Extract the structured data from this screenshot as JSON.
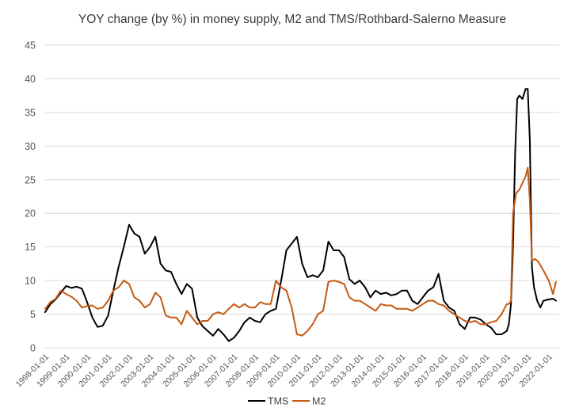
{
  "chart_data": {
    "type": "line",
    "title": "YOY change (by %) in money supply, M2 and TMS/Rothbard-Salerno Measure",
    "xlabel": "",
    "ylabel": "",
    "ylim": [
      0,
      45
    ],
    "yticks": [
      "0",
      "5",
      "10",
      "15",
      "20",
      "25",
      "30",
      "35",
      "40",
      "45"
    ],
    "xlim": [
      1998.0,
      2022.5
    ],
    "xticks": [
      "1998-01-01",
      "1999-01-01",
      "2000-01-01",
      "2001-01-01",
      "2002-01-01",
      "2003-01-01",
      "2004-01-01",
      "2005-01-01",
      "2006-01-01",
      "2007-01-01",
      "2008-01-01",
      "2009-01-01",
      "2010-01-01",
      "2011-01-01",
      "2012-01-01",
      "2013-01-01",
      "2014-01-01",
      "2015-01-01",
      "2016-01-01",
      "2017-01-01",
      "2018-01-01",
      "2019-01-01",
      "2020-01-01",
      "2021-01-01",
      "2022-01-01"
    ],
    "grid": true,
    "legend_position": "bottom",
    "series": [
      {
        "name": "TMS",
        "color": "#000000",
        "x": [
          1998.0,
          1998.25,
          1998.5,
          1998.75,
          1999.0,
          1999.25,
          1999.5,
          1999.75,
          2000.0,
          2000.25,
          2000.5,
          2000.75,
          2001.0,
          2001.25,
          2001.5,
          2001.75,
          2002.0,
          2002.25,
          2002.5,
          2002.75,
          2003.0,
          2003.25,
          2003.5,
          2003.75,
          2004.0,
          2004.25,
          2004.5,
          2004.75,
          2005.0,
          2005.25,
          2005.5,
          2005.75,
          2006.0,
          2006.25,
          2006.5,
          2006.75,
          2007.0,
          2007.25,
          2007.5,
          2007.75,
          2008.0,
          2008.25,
          2008.5,
          2008.75,
          2009.0,
          2009.25,
          2009.5,
          2009.75,
          2010.0,
          2010.25,
          2010.5,
          2010.75,
          2011.0,
          2011.25,
          2011.5,
          2011.75,
          2012.0,
          2012.25,
          2012.5,
          2012.75,
          2013.0,
          2013.25,
          2013.5,
          2013.75,
          2014.0,
          2014.25,
          2014.5,
          2014.75,
          2015.0,
          2015.25,
          2015.5,
          2015.75,
          2016.0,
          2016.25,
          2016.5,
          2016.75,
          2017.0,
          2017.25,
          2017.5,
          2017.75,
          2018.0,
          2018.25,
          2018.5,
          2018.75,
          2019.0,
          2019.25,
          2019.5,
          2019.75,
          2020.0,
          2020.1,
          2020.2,
          2020.3,
          2020.4,
          2020.5,
          2020.6,
          2020.75,
          2020.9,
          2021.0,
          2021.1,
          2021.2,
          2021.3,
          2021.45,
          2021.6,
          2021.75,
          2022.0,
          2022.2,
          2022.35
        ],
        "y": [
          5.3,
          6.5,
          7.2,
          8.2,
          9.2,
          8.9,
          9.1,
          8.8,
          6.8,
          4.5,
          3.1,
          3.3,
          4.8,
          8.5,
          12.0,
          15.0,
          18.3,
          17.0,
          16.5,
          14.0,
          15.0,
          16.5,
          12.5,
          11.5,
          11.3,
          9.5,
          8.0,
          9.5,
          8.8,
          4.5,
          3.2,
          2.5,
          1.8,
          2.8,
          2.0,
          1.0,
          1.5,
          2.5,
          3.8,
          4.5,
          4.0,
          3.8,
          5.0,
          5.5,
          5.8,
          10.0,
          14.5,
          15.5,
          16.5,
          12.5,
          10.5,
          10.8,
          10.5,
          11.5,
          15.8,
          14.5,
          14.5,
          13.5,
          10.2,
          9.5,
          10.0,
          9.0,
          7.5,
          8.5,
          8.0,
          8.2,
          7.8,
          8.0,
          8.5,
          8.5,
          7.0,
          6.5,
          7.5,
          8.5,
          9.0,
          11.0,
          7.0,
          6.0,
          5.5,
          3.5,
          2.8,
          4.5,
          4.5,
          4.2,
          3.5,
          3.0,
          2.0,
          2.0,
          2.5,
          3.5,
          6.5,
          15.0,
          29.0,
          37.0,
          37.5,
          37.0,
          38.5,
          38.5,
          31.0,
          12.0,
          9.0,
          7.0,
          6.0,
          7.0,
          7.2,
          7.3,
          7.0
        ]
      },
      {
        "name": "M2",
        "color": "#c55a11",
        "x": [
          1998.0,
          1998.25,
          1998.5,
          1998.75,
          1999.0,
          1999.25,
          1999.5,
          1999.75,
          2000.0,
          2000.25,
          2000.5,
          2000.75,
          2001.0,
          2001.25,
          2001.5,
          2001.75,
          2002.0,
          2002.25,
          2002.5,
          2002.75,
          2003.0,
          2003.25,
          2003.5,
          2003.75,
          2004.0,
          2004.25,
          2004.5,
          2004.75,
          2005.0,
          2005.25,
          2005.5,
          2005.75,
          2006.0,
          2006.25,
          2006.5,
          2006.75,
          2007.0,
          2007.25,
          2007.5,
          2007.75,
          2008.0,
          2008.25,
          2008.5,
          2008.75,
          2009.0,
          2009.25,
          2009.5,
          2009.75,
          2010.0,
          2010.25,
          2010.5,
          2010.75,
          2011.0,
          2011.25,
          2011.5,
          2011.75,
          2012.0,
          2012.25,
          2012.5,
          2012.75,
          2013.0,
          2013.25,
          2013.5,
          2013.75,
          2014.0,
          2014.25,
          2014.5,
          2014.75,
          2015.0,
          2015.25,
          2015.5,
          2015.75,
          2016.0,
          2016.25,
          2016.5,
          2016.75,
          2017.0,
          2017.25,
          2017.5,
          2017.75,
          2018.0,
          2018.25,
          2018.5,
          2018.75,
          2019.0,
          2019.25,
          2019.5,
          2019.75,
          2020.0,
          2020.1,
          2020.2,
          2020.3,
          2020.45,
          2020.6,
          2020.75,
          2020.9,
          2021.0,
          2021.1,
          2021.2,
          2021.35,
          2021.5,
          2021.75,
          2022.0,
          2022.2,
          2022.35
        ],
        "y": [
          5.8,
          6.8,
          7.3,
          8.5,
          8.0,
          7.6,
          7.0,
          6.0,
          6.2,
          6.3,
          5.8,
          6.0,
          7.0,
          8.5,
          9.0,
          10.0,
          9.5,
          7.5,
          7.0,
          6.0,
          6.5,
          8.2,
          7.5,
          4.8,
          4.5,
          4.5,
          3.5,
          5.5,
          4.5,
          3.5,
          4.0,
          4.0,
          5.0,
          5.3,
          5.0,
          5.8,
          6.5,
          6.0,
          6.5,
          6.0,
          6.0,
          6.8,
          6.5,
          6.5,
          10.0,
          9.0,
          8.5,
          6.0,
          2.0,
          1.8,
          2.5,
          3.5,
          5.0,
          5.5,
          9.8,
          10.0,
          9.8,
          9.5,
          7.5,
          7.0,
          7.0,
          6.5,
          6.0,
          5.5,
          6.5,
          6.3,
          6.3,
          5.8,
          5.8,
          5.8,
          5.5,
          6.0,
          6.5,
          7.0,
          7.0,
          6.5,
          6.3,
          5.5,
          5.0,
          4.5,
          4.0,
          3.8,
          4.0,
          3.5,
          3.5,
          3.8,
          4.0,
          5.0,
          6.5,
          6.5,
          7.0,
          20.0,
          23.0,
          23.5,
          24.5,
          25.5,
          26.8,
          22.0,
          13.0,
          13.2,
          12.8,
          11.5,
          10.0,
          8.0,
          9.8
        ]
      }
    ]
  }
}
